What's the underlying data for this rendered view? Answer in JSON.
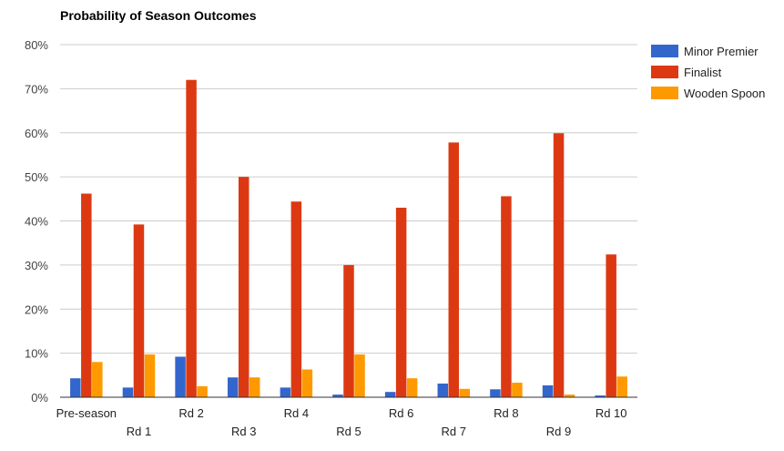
{
  "chart_data": {
    "type": "bar",
    "title": "Probability of Season Outcomes",
    "xlabel": "",
    "ylabel": "",
    "ylim": [
      0,
      80
    ],
    "yticks": [
      "0%",
      "10%",
      "20%",
      "30%",
      "40%",
      "50%",
      "60%",
      "70%",
      "80%"
    ],
    "grid": true,
    "legend_position": "right",
    "categories": [
      "Pre-season",
      "Rd 1",
      "Rd 2",
      "Rd 3",
      "Rd 4",
      "Rd 5",
      "Rd 6",
      "Rd 7",
      "Rd 8",
      "Rd 9",
      "Rd 10"
    ],
    "series": [
      {
        "name": "Minor Premier",
        "color": "#3366cc",
        "values": [
          4.3,
          2.2,
          9.2,
          4.5,
          2.2,
          0.6,
          1.2,
          3.1,
          1.8,
          2.7,
          0.4
        ]
      },
      {
        "name": "Finalist",
        "color": "#dc3912",
        "values": [
          46.2,
          39.2,
          72.0,
          50.0,
          44.4,
          30.0,
          43.0,
          57.8,
          45.6,
          59.9,
          32.4
        ]
      },
      {
        "name": "Wooden Spoon",
        "color": "#ff9900",
        "values": [
          8.0,
          9.7,
          2.5,
          4.5,
          6.3,
          9.7,
          4.3,
          1.9,
          3.3,
          0.6,
          4.7
        ]
      }
    ]
  }
}
